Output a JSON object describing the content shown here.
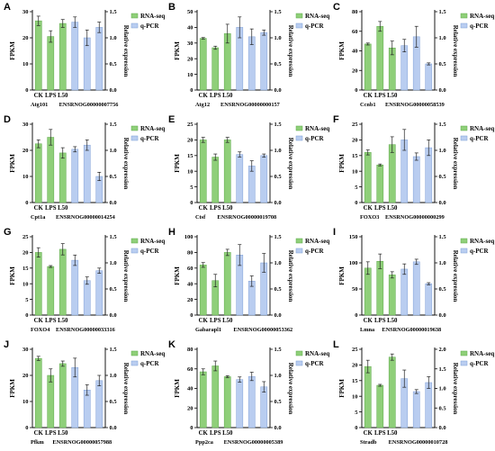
{
  "colors": {
    "rna": "#8fcf79",
    "rna_stroke": "#5ea94a",
    "qpcr": "#b9cdf0",
    "qpcr_stroke": "#7f9fd6"
  },
  "legend": {
    "rna": "RNA-seq",
    "qpcr": "q-PCR"
  },
  "chart_data": [
    {
      "type": "bar",
      "panel": "A",
      "gene": "Atg101",
      "ensembl": "ENSRNOG00000007756",
      "categories": [
        "CK",
        "LPS",
        "L50"
      ],
      "ylabel": "FPKM",
      "y2label": "Relative expression",
      "ylim": [
        0,
        30
      ],
      "yticks": [
        0,
        10,
        20,
        30
      ],
      "y2lim": [
        0,
        1.5
      ],
      "y2ticks": [
        0.0,
        0.5,
        1.0,
        1.5
      ],
      "series": [
        {
          "name": "RNA-seq",
          "axis": "left",
          "values": [
            26.5,
            20.5,
            25.5
          ],
          "errors": [
            1.8,
            2.2,
            1.5
          ]
        },
        {
          "name": "q-PCR",
          "axis": "right",
          "values": [
            1.3,
            1.0,
            1.2
          ],
          "errors": [
            0.1,
            0.15,
            0.1
          ]
        }
      ]
    },
    {
      "type": "bar",
      "panel": "B",
      "gene": "Atg12",
      "ensembl": "ENSRNOG00000000157",
      "categories": [
        "CK",
        "LPS",
        "L50"
      ],
      "ylabel": "FPKM",
      "y2label": "Relative expression",
      "ylim": [
        0,
        50
      ],
      "yticks": [
        0,
        10,
        20,
        30,
        40,
        50
      ],
      "y2lim": [
        0,
        1.5
      ],
      "y2ticks": [
        0.0,
        0.5,
        1.0,
        1.5
      ],
      "series": [
        {
          "name": "RNA-seq",
          "axis": "left",
          "values": [
            33,
            27,
            36
          ],
          "errors": [
            0.5,
            1.0,
            6.0
          ]
        },
        {
          "name": "q-PCR",
          "axis": "right",
          "values": [
            1.2,
            1.02,
            1.1
          ],
          "errors": [
            0.2,
            0.15,
            0.05
          ]
        }
      ]
    },
    {
      "type": "bar",
      "panel": "C",
      "gene": "Ccnb1",
      "ensembl": "ENSRNOG00000058539",
      "categories": [
        "CK",
        "LPS",
        "L50"
      ],
      "ylabel": "FPKM",
      "y2label": "Relative expression",
      "ylim": [
        0,
        80
      ],
      "yticks": [
        0,
        20,
        40,
        60,
        80
      ],
      "y2lim": [
        0,
        1.5
      ],
      "y2ticks": [
        0.0,
        0.5,
        1.0,
        1.5
      ],
      "series": [
        {
          "name": "RNA-seq",
          "axis": "left",
          "values": [
            47,
            65,
            43
          ],
          "errors": [
            1.0,
            5.0,
            7.0
          ]
        },
        {
          "name": "q-PCR",
          "axis": "right",
          "values": [
            0.85,
            1.02,
            0.5
          ],
          "errors": [
            0.12,
            0.2,
            0.02
          ]
        }
      ]
    },
    {
      "type": "bar",
      "panel": "D",
      "gene": "Cpt1a",
      "ensembl": "ENSRNOG00000014254",
      "categories": [
        "CK",
        "LPS",
        "L50"
      ],
      "ylabel": "FPKM",
      "y2label": "Relative expression",
      "ylim": [
        0,
        30
      ],
      "yticks": [
        0,
        10,
        20,
        30
      ],
      "y2lim": [
        0,
        1.5
      ],
      "y2ticks": [
        0.0,
        0.5,
        1.0,
        1.5
      ],
      "series": [
        {
          "name": "RNA-seq",
          "axis": "left",
          "values": [
            22.5,
            25,
            19
          ],
          "errors": [
            1.5,
            3.0,
            2.0
          ]
        },
        {
          "name": "q-PCR",
          "axis": "right",
          "values": [
            1.02,
            1.1,
            0.5
          ],
          "errors": [
            0.05,
            0.1,
            0.08
          ]
        }
      ]
    },
    {
      "type": "bar",
      "panel": "E",
      "gene": "Ctsf",
      "ensembl": "ENSRNOG00000019708",
      "categories": [
        "CK",
        "LPS",
        "L50"
      ],
      "ylabel": "FPKM",
      "y2label": "Relative expression",
      "ylim": [
        0,
        25
      ],
      "yticks": [
        0,
        5,
        10,
        15,
        20,
        25
      ],
      "y2lim": [
        0,
        1.5
      ],
      "y2ticks": [
        0.0,
        0.5,
        1.0,
        1.5
      ],
      "series": [
        {
          "name": "RNA-seq",
          "axis": "left",
          "values": [
            20,
            14.5,
            20
          ],
          "errors": [
            0.8,
            1.0,
            0.8
          ]
        },
        {
          "name": "q-PCR",
          "axis": "right",
          "values": [
            0.92,
            0.7,
            0.9
          ],
          "errors": [
            0.05,
            0.1,
            0.03
          ]
        }
      ]
    },
    {
      "type": "bar",
      "panel": "F",
      "gene": "FOXO3",
      "ensembl": "ENSRNOG00000000299",
      "categories": [
        "CK",
        "LPS",
        "L50"
      ],
      "ylabel": "FPKM",
      "y2label": "Relative expression",
      "ylim": [
        0,
        25
      ],
      "yticks": [
        0,
        5,
        10,
        15,
        20,
        25
      ],
      "y2lim": [
        0,
        1.5
      ],
      "y2ticks": [
        0.0,
        0.5,
        1.0,
        1.5
      ],
      "series": [
        {
          "name": "RNA-seq",
          "axis": "left",
          "values": [
            16,
            12,
            18.5
          ],
          "errors": [
            0.8,
            0.3,
            2.5
          ]
        },
        {
          "name": "q-PCR",
          "axis": "right",
          "values": [
            1.2,
            0.88,
            1.05
          ],
          "errors": [
            0.2,
            0.07,
            0.15
          ]
        }
      ]
    },
    {
      "type": "bar",
      "panel": "G",
      "gene": "FOXO4",
      "ensembl": "ENSRNOG00000033316",
      "categories": [
        "CK",
        "LPS",
        "L50"
      ],
      "ylabel": "FPKM",
      "y2label": "Relative expression",
      "ylim": [
        0,
        25
      ],
      "yticks": [
        0,
        5,
        10,
        15,
        20,
        25
      ],
      "y2lim": [
        0,
        1.5
      ],
      "y2ticks": [
        0.0,
        0.5,
        1.0,
        1.5
      ],
      "series": [
        {
          "name": "RNA-seq",
          "axis": "left",
          "values": [
            20,
            15.5,
            21
          ],
          "errors": [
            1.5,
            0.3,
            1.8
          ]
        },
        {
          "name": "q-PCR",
          "axis": "right",
          "values": [
            1.05,
            0.66,
            0.85
          ],
          "errors": [
            0.1,
            0.07,
            0.05
          ]
        }
      ]
    },
    {
      "type": "bar",
      "panel": "H",
      "gene": "Gabarapl1",
      "ensembl": "ENSRNOG00000053362",
      "categories": [
        "CK",
        "LPS",
        "L50"
      ],
      "ylabel": "FPKM",
      "y2label": "Relative expression",
      "ylim": [
        0,
        100
      ],
      "yticks": [
        0,
        20,
        40,
        60,
        80,
        100
      ],
      "y2lim": [
        0,
        1.5
      ],
      "y2ticks": [
        0.0,
        0.5,
        1.0,
        1.5
      ],
      "series": [
        {
          "name": "RNA-seq",
          "axis": "left",
          "values": [
            64,
            44,
            80
          ],
          "errors": [
            3.0,
            8.0,
            4.0
          ]
        },
        {
          "name": "q-PCR",
          "axis": "right",
          "values": [
            1.15,
            0.65,
            1.0
          ],
          "errors": [
            0.2,
            0.1,
            0.18
          ]
        }
      ]
    },
    {
      "type": "bar",
      "panel": "I",
      "gene": "Lmna",
      "ensembl": "ENSRNOG00000019638",
      "categories": [
        "CK",
        "LPS",
        "L50"
      ],
      "ylabel": "FPKM",
      "y2label": "Relative expression",
      "ylim": [
        0,
        150
      ],
      "yticks": [
        0,
        50,
        100,
        150
      ],
      "y2lim": [
        0,
        1.5
      ],
      "y2ticks": [
        0.0,
        0.5,
        1.0,
        1.5
      ],
      "series": [
        {
          "name": "RNA-seq",
          "axis": "left",
          "values": [
            90,
            103,
            77
          ],
          "errors": [
            12,
            14,
            6
          ]
        },
        {
          "name": "q-PCR",
          "axis": "right",
          "values": [
            0.88,
            1.02,
            0.6
          ],
          "errors": [
            0.1,
            0.05,
            0.02
          ]
        }
      ]
    },
    {
      "type": "bar",
      "panel": "J",
      "gene": "Pfkm",
      "ensembl": "ENSRNOG00000057988",
      "categories": [
        "CK",
        "LPS",
        "L50"
      ],
      "ylabel": "FPKM",
      "y2label": "Relative expression",
      "ylim": [
        0,
        30
      ],
      "yticks": [
        0,
        10,
        20,
        30
      ],
      "y2lim": [
        0,
        1.5
      ],
      "y2ticks": [
        0.0,
        0.5,
        1.0,
        1.5
      ],
      "series": [
        {
          "name": "RNA-seq",
          "axis": "left",
          "values": [
            26.5,
            20,
            24.5
          ],
          "errors": [
            0.8,
            2.5,
            1.0
          ]
        },
        {
          "name": "q-PCR",
          "axis": "right",
          "values": [
            1.15,
            0.72,
            0.9
          ],
          "errors": [
            0.18,
            0.1,
            0.1
          ]
        }
      ]
    },
    {
      "type": "bar",
      "panel": "K",
      "gene": "Ppp2ca",
      "ensembl": "ENSRNOG00000005389",
      "categories": [
        "CK",
        "LPS",
        "L50"
      ],
      "ylabel": "FPKM",
      "y2label": "Relative expression",
      "ylim": [
        0,
        80
      ],
      "yticks": [
        0,
        20,
        40,
        60,
        80
      ],
      "y2lim": [
        0,
        1.5
      ],
      "y2ticks": [
        0.0,
        0.5,
        1.0,
        1.5
      ],
      "series": [
        {
          "name": "RNA-seq",
          "axis": "left",
          "values": [
            57,
            63,
            52
          ],
          "errors": [
            3.0,
            5.0,
            1.0
          ]
        },
        {
          "name": "q-PCR",
          "axis": "right",
          "values": [
            0.92,
            0.98,
            0.78
          ],
          "errors": [
            0.05,
            0.08,
            0.1
          ]
        }
      ]
    },
    {
      "type": "bar",
      "panel": "L",
      "gene": "Stradb",
      "ensembl": "ENSRNOG00000010728",
      "categories": [
        "CK",
        "LPS",
        "L50"
      ],
      "ylabel": "FPKM",
      "y2label": "Relative expression",
      "ylim": [
        0,
        25
      ],
      "yticks": [
        0,
        5,
        10,
        15,
        20,
        25
      ],
      "y2lim": [
        0,
        2.0
      ],
      "y2ticks": [
        0.0,
        0.5,
        1.0,
        1.5,
        2.0
      ],
      "series": [
        {
          "name": "RNA-seq",
          "axis": "left",
          "values": [
            19.5,
            13.5,
            22.5
          ],
          "errors": [
            2.0,
            0.3,
            1.0
          ]
        },
        {
          "name": "q-PCR",
          "axis": "right",
          "values": [
            1.25,
            0.92,
            1.15
          ],
          "errors": [
            0.22,
            0.05,
            0.15
          ]
        }
      ]
    }
  ]
}
